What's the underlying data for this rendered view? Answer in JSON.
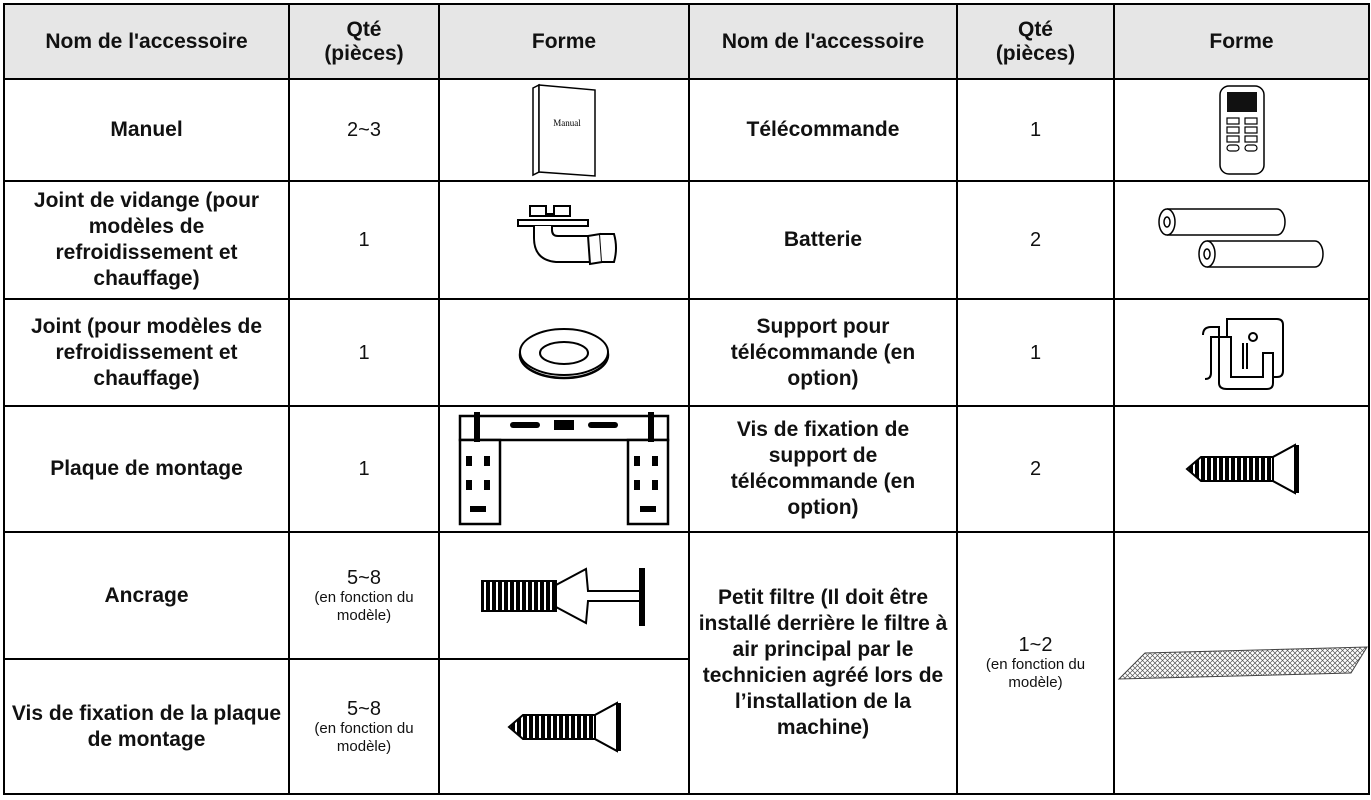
{
  "table": {
    "header": [
      "Nom de l'accessoire",
      "Qté (pièces)",
      "Forme",
      "Nom de l'accessoire",
      "Qté (pièces)",
      "Forme"
    ],
    "left": [
      {
        "name": "Manuel",
        "qty": "2~3"
      },
      {
        "name": "Joint de vidange (pour modèles de refroidissement et chauffage)",
        "qty": "1"
      },
      {
        "name": "Joint (pour modèles de refroidissement et chauffage)",
        "qty": "1"
      },
      {
        "name": "Plaque de montage",
        "qty": "1"
      },
      {
        "name": "Ancrage",
        "qty": "5~8",
        "note": "(en fonction du modèle)"
      },
      {
        "name": "Vis de fixation de la plaque de montage",
        "qty": "5~8",
        "note": "(en fonction du modèle)"
      }
    ],
    "right": [
      {
        "name": "Télécommande",
        "qty": "1"
      },
      {
        "name": "Batterie",
        "qty": "2"
      },
      {
        "name": "Support pour télécommande (en option)",
        "qty": "1"
      },
      {
        "name": "Vis de fixation de support de télécommande (en option)",
        "qty": "2"
      },
      {
        "name": "Petit filtre (Il doit être installé derrière le filtre à air principal par le technicien agréé lors de l’installation de la machine)",
        "qty": "1~2",
        "note": "(en fonction du modèle)"
      }
    ]
  },
  "icons": {
    "manual_label": "Manual"
  }
}
